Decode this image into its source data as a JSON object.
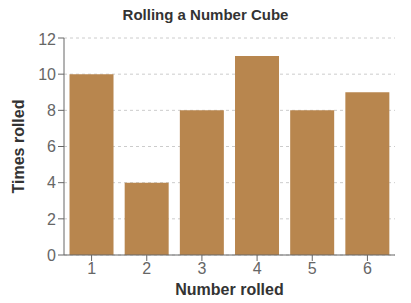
{
  "chart_data": {
    "type": "bar",
    "title": "Rolling a Number Cube",
    "xlabel": "Number rolled",
    "ylabel": "Times rolled",
    "categories": [
      1,
      2,
      3,
      4,
      5,
      6
    ],
    "values": [
      10,
      4,
      8,
      11,
      8,
      9
    ],
    "color": "#b8864e",
    "ylim": [
      0,
      12
    ],
    "yticks": [
      0,
      2,
      4,
      6,
      8,
      10,
      12
    ],
    "grid": true
  }
}
